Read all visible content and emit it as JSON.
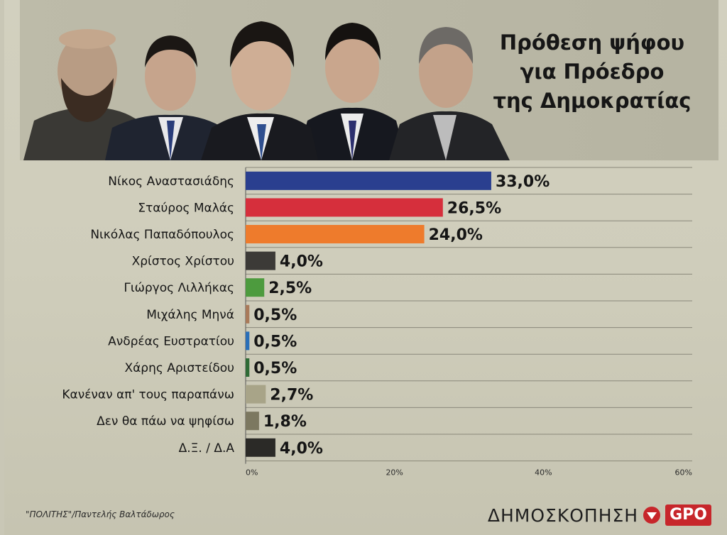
{
  "title": [
    "Πρόθεση ψήφου",
    "για Πρόεδρο",
    "της Δημοκρατίας"
  ],
  "portraits": [
    "portrait-1",
    "portrait-2",
    "portrait-3",
    "portrait-4",
    "portrait-5"
  ],
  "credit": "\"ΠΟΛΙΤΗΣ\"/Παντελής Βαλτάδωρος",
  "source": {
    "label": "ΔΗΜΟΣΚΟΠΗΣΗ",
    "logo_text": "GPO"
  },
  "colors": {
    "background": "#cfcdbb",
    "grid": "#8a887a"
  },
  "chart_data": {
    "type": "bar",
    "orientation": "horizontal",
    "categories": [
      "Νίκος Αναστασιάδης",
      "Σταύρος Μαλάς",
      "Νικόλας Παπαδόπουλος",
      "Χρίστος Χρίστου",
      "Γιώργος Λιλλήκας",
      "Μιχάλης Μηνά",
      "Ανδρέας Ευστρατίου",
      "Χάρης Αριστείδου",
      "Κανέναν απ' τους παραπάνω",
      "Δεν θα πάω να ψηφίσω",
      "Δ.Ξ. / Δ.Α"
    ],
    "values": [
      33.0,
      26.5,
      24.0,
      4.0,
      2.5,
      0.5,
      0.5,
      0.5,
      2.7,
      1.8,
      4.0
    ],
    "value_labels": [
      "33,0%",
      "26,5%",
      "24,0%",
      "4,0%",
      "2,5%",
      "0,5%",
      "0,5%",
      "0,5%",
      "2,7%",
      "1,8%",
      "4,0%"
    ],
    "colors": [
      "#2a3f8f",
      "#d62f3c",
      "#ee7b2c",
      "#3c3a37",
      "#4d9b3e",
      "#a97a5a",
      "#2a6fb8",
      "#2f6b36",
      "#a8a488",
      "#7c7860",
      "#2b2a27"
    ],
    "x_ticks": [
      "0%",
      "20%",
      "40%",
      "60%"
    ],
    "xlim": [
      0,
      60
    ],
    "grid": true
  }
}
